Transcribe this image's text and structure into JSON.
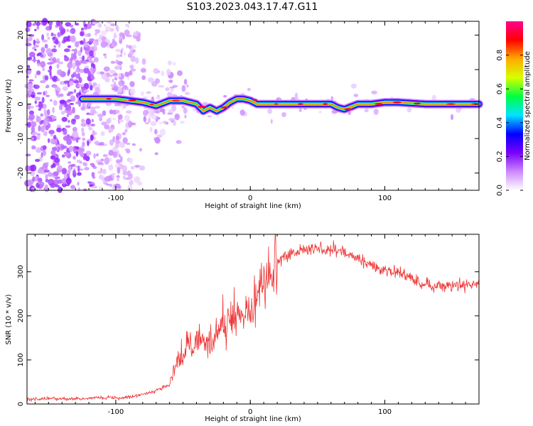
{
  "title": "S103.2023.043.17.47.G11",
  "chart_data": [
    {
      "type": "heatmap",
      "xlabel": "Height of straight line (km)",
      "ylabel": "Frequency (Hz)",
      "xlim": [
        -166,
        170
      ],
      "ylim": [
        -25,
        24
      ],
      "x_ticks": [
        -100,
        0,
        100
      ],
      "y_ticks": [
        -20,
        -10,
        0,
        10,
        20
      ],
      "colorbar": {
        "label": "Normalized spectral amplitude",
        "range": [
          0,
          1
        ],
        "ticks": [
          0.0,
          0.2,
          0.4,
          0.6,
          0.8
        ],
        "colors": [
          "#ffffff",
          "#cc88ff",
          "#7a00ff",
          "#0000ff",
          "#00e5ff",
          "#00ff40",
          "#d8ff00",
          "#ffaa00",
          "#ff0000",
          "#ff0090"
        ]
      },
      "ridge": {
        "x": [
          -125,
          -115,
          -100,
          -90,
          -80,
          -70,
          -60,
          -50,
          -40,
          -35,
          -30,
          -25,
          -20,
          -15,
          -10,
          -5,
          0,
          5,
          10,
          20,
          40,
          60,
          65,
          70,
          80,
          90,
          100,
          110,
          130,
          150,
          170
        ],
        "frequency": [
          1.5,
          1.5,
          1.5,
          1.0,
          0.5,
          -0.5,
          1.0,
          1.0,
          0.0,
          -2.0,
          -1.0,
          -2.0,
          -1.0,
          0.5,
          1.5,
          1.5,
          1.0,
          0.0,
          0.0,
          0.0,
          0.0,
          0.0,
          -1.0,
          -1.5,
          0.0,
          0.0,
          0.5,
          0.5,
          0.0,
          0.0,
          0.0
        ]
      }
    },
    {
      "type": "line",
      "xlabel": "Height of straight line (km)",
      "ylabel": "SNR (10 * v/v)",
      "xlim": [
        -166,
        170
      ],
      "ylim": [
        0,
        385
      ],
      "x_ticks": [
        -100,
        0,
        100
      ],
      "y_ticks": [
        0,
        100,
        200,
        300
      ],
      "color": "#ee3333",
      "x": [
        -166,
        -150,
        -130,
        -110,
        -90,
        -80,
        -70,
        -60,
        -55,
        -50,
        -40,
        -30,
        -20,
        -10,
        0,
        10,
        20,
        30,
        40,
        50,
        60,
        70,
        80,
        90,
        100,
        110,
        120,
        130,
        140,
        150,
        160,
        170
      ],
      "values": [
        10,
        12,
        12,
        14,
        16,
        22,
        30,
        45,
        95,
        115,
        150,
        140,
        185,
        205,
        215,
        270,
        325,
        340,
        350,
        352,
        350,
        345,
        330,
        315,
        305,
        298,
        285,
        270,
        265,
        270,
        270,
        272
      ]
    }
  ]
}
